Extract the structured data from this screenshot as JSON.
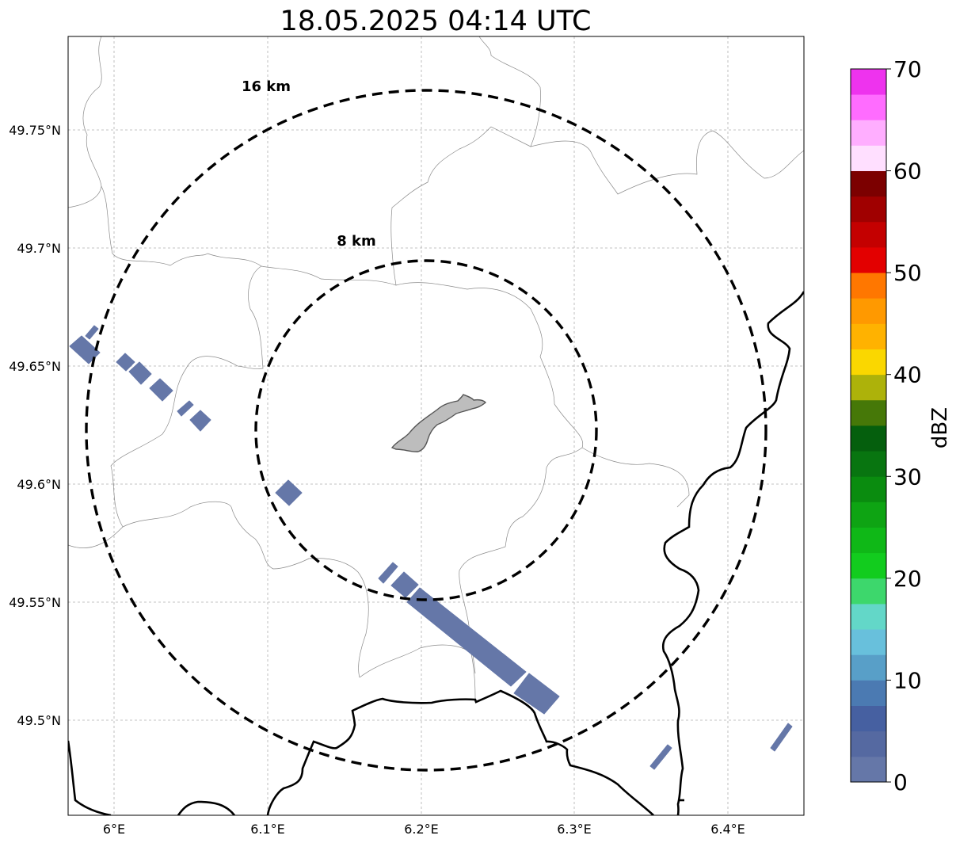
{
  "title": "18.05.2025 04:14 UTC",
  "map": {
    "lat_ticks": [
      "49.75°N",
      "49.7°N",
      "49.65°N",
      "49.6°N",
      "49.55°N",
      "49.5°N"
    ],
    "lon_ticks": [
      "6°E",
      "6.1°E",
      "6.2°E",
      "6.3°E",
      "6.4°E"
    ],
    "range_rings": [
      {
        "label": "16 km",
        "radius_km": 16
      },
      {
        "label": "8 km",
        "radius_km": 8
      }
    ],
    "gridlines": true
  },
  "colorbar": {
    "label": "dBZ",
    "tick_labels": [
      "0",
      "10",
      "20",
      "30",
      "40",
      "50",
      "60",
      "70"
    ],
    "min": 0,
    "max": 70,
    "colors": [
      "#6577a8",
      "#5569a1",
      "#4660a1",
      "#4b7ab2",
      "#589fc8",
      "#68c0dc",
      "#63d7c8",
      "#3dd76c",
      "#12cc1e",
      "#0fb817",
      "#0ea413",
      "#0a8c0f",
      "#087510",
      "#055f0d",
      "#467808",
      "#adb20a",
      "#fad700",
      "#ffb200",
      "#ff9900",
      "#ff7700",
      "#e30000",
      "#c40000",
      "#a00000",
      "#7c0000",
      "#ffdfff",
      "#ffaeff",
      "#ff6cff",
      "#ee33ee"
    ]
  },
  "echo_color": "#6577a8"
}
